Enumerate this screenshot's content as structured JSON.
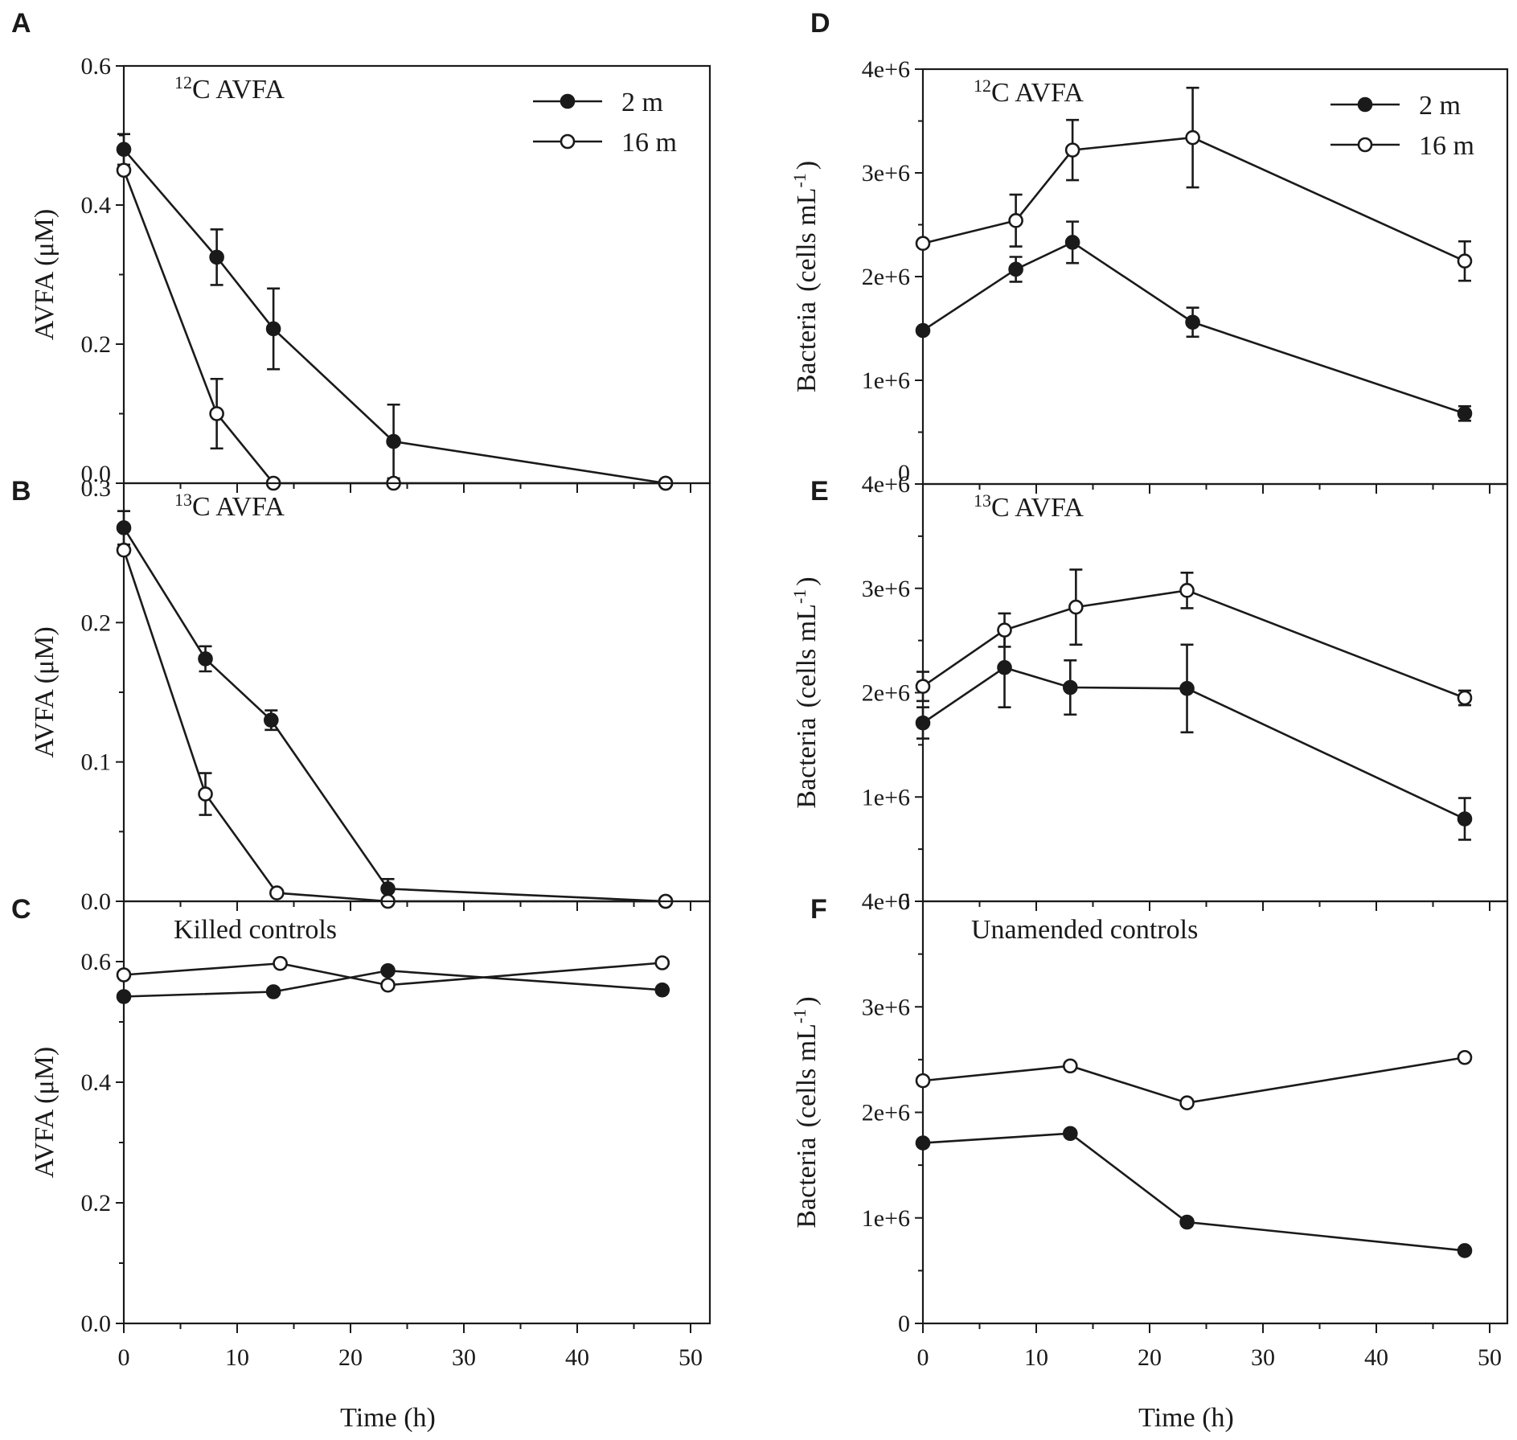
{
  "chart_data": [
    {
      "panel": "A",
      "type": "line",
      "annotation": {
        "sup": "12",
        "text": "C AVFA"
      },
      "ylabel": "AVFA (μM)",
      "ylim": [
        0,
        0.6
      ],
      "yticks": [
        0,
        0.2,
        0.4,
        0.6
      ],
      "ytick_labels": [
        "0.0",
        "0.2",
        "0.4",
        "0.6"
      ],
      "xlim": [
        0,
        50
      ],
      "xticks": [
        0,
        10,
        20,
        30,
        40,
        50
      ],
      "legend": [
        {
          "series": "2 m",
          "label": "2 m"
        },
        {
          "series": "16 m",
          "label": "16 m"
        }
      ],
      "series": [
        {
          "name": "2 m",
          "marker": "filled",
          "x": [
            0,
            8.2,
            13.2,
            23.8,
            47.8
          ],
          "y": [
            0.48,
            0.325,
            0.222,
            0.06,
            0.0
          ],
          "err": [
            0.022,
            0.04,
            0.058,
            0.053,
            0
          ]
        },
        {
          "name": "16 m",
          "marker": "open",
          "x": [
            0,
            8.2,
            13.2,
            23.8,
            47.8
          ],
          "y": [
            0.45,
            0.1,
            0.0,
            0.0,
            0.0
          ],
          "err": [
            0,
            0.05,
            0,
            0,
            0
          ]
        }
      ]
    },
    {
      "panel": "B",
      "type": "line",
      "annotation": {
        "sup": "13",
        "text": "C AVFA"
      },
      "ylabel": "AVFA (μM)",
      "ylim": [
        0,
        0.3
      ],
      "yticks": [
        0,
        0.1,
        0.2,
        0.3
      ],
      "ytick_labels": [
        "0.0",
        "0.1",
        "0.2",
        "0.3"
      ],
      "xlim": [
        0,
        50
      ],
      "xticks": [
        0,
        10,
        20,
        30,
        40,
        50
      ],
      "series": [
        {
          "name": "2 m",
          "marker": "filled",
          "x": [
            0,
            7.2,
            13.0,
            23.3,
            47.8
          ],
          "y": [
            0.268,
            0.174,
            0.13,
            0.009,
            0.0
          ],
          "err": [
            0.012,
            0.009,
            0.007,
            0.007,
            0
          ]
        },
        {
          "name": "16 m",
          "marker": "open",
          "x": [
            0,
            7.2,
            13.5,
            23.3,
            47.8
          ],
          "y": [
            0.252,
            0.077,
            0.006,
            0.0,
            0.0
          ],
          "err": [
            0,
            0.015,
            0,
            0,
            0
          ]
        }
      ]
    },
    {
      "panel": "C",
      "type": "line",
      "annotation": {
        "sup": "",
        "text": "Killed controls"
      },
      "ylabel": "AVFA (μM)",
      "ylim": [
        0,
        0.7
      ],
      "yticks": [
        0,
        0.2,
        0.4,
        0.6
      ],
      "ytick_labels": [
        "0.0",
        "0.2",
        "0.4",
        "0.6"
      ],
      "xlim": [
        0,
        50
      ],
      "xticks": [
        0,
        10,
        20,
        30,
        40,
        50
      ],
      "xtick_labels": [
        "0",
        "10",
        "20",
        "30",
        "40",
        "50"
      ],
      "xlabel": "Time (h)",
      "series": [
        {
          "name": "2 m",
          "marker": "filled",
          "x": [
            0,
            13.2,
            23.3,
            47.5
          ],
          "y": [
            0.542,
            0.55,
            0.585,
            0.553
          ],
          "err": [
            0,
            0,
            0,
            0
          ]
        },
        {
          "name": "16 m",
          "marker": "open",
          "x": [
            0,
            13.8,
            23.3,
            47.5
          ],
          "y": [
            0.578,
            0.597,
            0.561,
            0.598
          ],
          "err": [
            0,
            0,
            0,
            0
          ]
        }
      ]
    },
    {
      "panel": "D",
      "type": "line",
      "annotation": {
        "sup": "12",
        "text": "C AVFA"
      },
      "ylabel": "Bacteria",
      "ylabel_unit": "(cells mL",
      "ylabel_sup": "-1",
      "ylabel_close": ")",
      "ylim": [
        0,
        4000000
      ],
      "yticks": [
        0,
        1000000,
        2000000,
        3000000,
        4000000
      ],
      "ytick_labels": [
        "0",
        "1e+6",
        "2e+6",
        "3e+6",
        "4e+6"
      ],
      "xlim": [
        0,
        50
      ],
      "xticks": [
        0,
        10,
        20,
        30,
        40,
        50
      ],
      "legend": [
        {
          "series": "2 m",
          "label": "2 m"
        },
        {
          "series": "16 m",
          "label": "16 m"
        }
      ],
      "series": [
        {
          "name": "2 m",
          "marker": "filled",
          "x": [
            0,
            8.2,
            13.2,
            23.8,
            47.8
          ],
          "y": [
            1480000,
            2070000,
            2330000,
            1560000,
            680000
          ],
          "err": [
            0,
            120000,
            200000,
            140000,
            70000
          ]
        },
        {
          "name": "16 m",
          "marker": "open",
          "x": [
            0,
            8.2,
            13.2,
            23.8,
            47.8
          ],
          "y": [
            2320000,
            2540000,
            3220000,
            3340000,
            2150000
          ],
          "err": [
            0,
            250000,
            290000,
            480000,
            190000
          ]
        }
      ]
    },
    {
      "panel": "E",
      "type": "line",
      "annotation": {
        "sup": "13",
        "text": "C AVFA"
      },
      "ylabel": "Bacteria",
      "ylabel_unit": "(cells mL",
      "ylabel_sup": "-1",
      "ylabel_close": ")",
      "ylim": [
        0,
        4000000
      ],
      "yticks": [
        0,
        1000000,
        2000000,
        3000000,
        4000000
      ],
      "ytick_labels": [
        "0",
        "1e+6",
        "2e+6",
        "3e+6",
        "4e+6"
      ],
      "xlim": [
        0,
        50
      ],
      "xticks": [
        0,
        10,
        20,
        30,
        40,
        50
      ],
      "series": [
        {
          "name": "2 m",
          "marker": "filled",
          "x": [
            0,
            7.2,
            13.0,
            23.3,
            47.8
          ],
          "y": [
            1710000,
            2240000,
            2050000,
            2040000,
            790000
          ],
          "err": [
            150000,
            380000,
            260000,
            420000,
            200000
          ]
        },
        {
          "name": "16 m",
          "marker": "open",
          "x": [
            0,
            7.2,
            13.5,
            23.3,
            47.8
          ],
          "y": [
            2060000,
            2600000,
            2820000,
            2980000,
            1950000
          ],
          "err": [
            140000,
            160000,
            360000,
            170000,
            70000
          ]
        }
      ]
    },
    {
      "panel": "F",
      "type": "line",
      "annotation": {
        "sup": "",
        "text": "Unamended controls"
      },
      "ylabel": "Bacteria",
      "ylabel_unit": "(cells mL",
      "ylabel_sup": "-1",
      "ylabel_close": ")",
      "ylim": [
        0,
        4000000
      ],
      "yticks": [
        0,
        1000000,
        2000000,
        3000000,
        4000000
      ],
      "ytick_labels": [
        "0",
        "1e+6",
        "2e+6",
        "3e+6",
        "4e+6"
      ],
      "xlim": [
        0,
        50
      ],
      "xticks": [
        0,
        10,
        20,
        30,
        40,
        50
      ],
      "xtick_labels": [
        "0",
        "10",
        "20",
        "30",
        "40",
        "50"
      ],
      "xlabel": "Time (h)",
      "series": [
        {
          "name": "2 m",
          "marker": "filled",
          "x": [
            0,
            13.0,
            23.3,
            47.8
          ],
          "y": [
            1710000,
            1800000,
            960000,
            690000
          ],
          "err": [
            0,
            0,
            0,
            0
          ]
        },
        {
          "name": "16 m",
          "marker": "open",
          "x": [
            0,
            13.0,
            23.3,
            47.8
          ],
          "y": [
            2300000,
            2440000,
            2090000,
            2520000
          ],
          "err": [
            0,
            0,
            0,
            0
          ]
        }
      ]
    }
  ]
}
